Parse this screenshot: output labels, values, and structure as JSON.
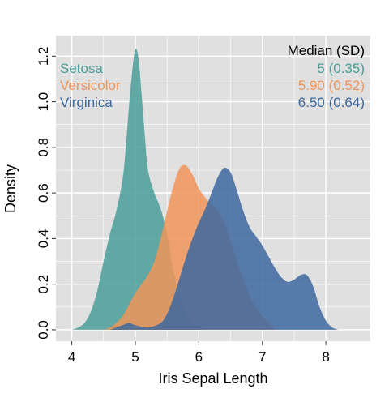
{
  "chart_data": {
    "type": "area",
    "xlabel": "Iris Sepal Length",
    "ylabel": "Density",
    "xlim": [
      3.75,
      8.7
    ],
    "ylim": [
      -0.05,
      1.29
    ],
    "x_ticks": [
      4,
      5,
      6,
      7,
      8
    ],
    "y_ticks": [
      0.0,
      0.2,
      0.4,
      0.6,
      0.8,
      1.0,
      1.2
    ],
    "y_tick_labels": [
      "0.0",
      "0.2",
      "0.4",
      "0.6",
      "0.8",
      "1.0",
      "1.2"
    ],
    "grid": true,
    "legend_placement": "top-left",
    "table_header": "Median (SD)",
    "colors": {
      "setosa": "#4a9e99",
      "versicolor": "#f0955a",
      "virginica": "#3c679f",
      "panel_bg": "#e0e0e0",
      "grid": "#ffffff"
    },
    "series": [
      {
        "name": "Setosa",
        "stat": "5 (0.35)",
        "color": "#4a9e99",
        "points": [
          [
            4.0,
            0.0
          ],
          [
            4.1,
            0.01
          ],
          [
            4.2,
            0.03
          ],
          [
            4.3,
            0.08
          ],
          [
            4.4,
            0.17
          ],
          [
            4.5,
            0.3
          ],
          [
            4.6,
            0.42
          ],
          [
            4.7,
            0.52
          ],
          [
            4.8,
            0.66
          ],
          [
            4.85,
            0.8
          ],
          [
            4.9,
            0.98
          ],
          [
            4.95,
            1.13
          ],
          [
            5.0,
            1.23
          ],
          [
            5.05,
            1.19
          ],
          [
            5.1,
            1.03
          ],
          [
            5.15,
            0.85
          ],
          [
            5.2,
            0.7
          ],
          [
            5.3,
            0.6
          ],
          [
            5.4,
            0.53
          ],
          [
            5.5,
            0.42
          ],
          [
            5.6,
            0.26
          ],
          [
            5.7,
            0.14
          ],
          [
            5.8,
            0.07
          ],
          [
            5.9,
            0.03
          ],
          [
            6.0,
            0.01
          ],
          [
            6.1,
            0.0
          ]
        ]
      },
      {
        "name": "Versicolor",
        "stat": "5.90 (0.52)",
        "color": "#f0955a",
        "points": [
          [
            4.5,
            0.0
          ],
          [
            4.6,
            0.01
          ],
          [
            4.7,
            0.03
          ],
          [
            4.8,
            0.06
          ],
          [
            4.9,
            0.11
          ],
          [
            5.0,
            0.16
          ],
          [
            5.1,
            0.2
          ],
          [
            5.2,
            0.24
          ],
          [
            5.3,
            0.3
          ],
          [
            5.4,
            0.4
          ],
          [
            5.5,
            0.52
          ],
          [
            5.6,
            0.63
          ],
          [
            5.7,
            0.71
          ],
          [
            5.8,
            0.72
          ],
          [
            5.9,
            0.68
          ],
          [
            6.0,
            0.62
          ],
          [
            6.1,
            0.58
          ],
          [
            6.2,
            0.55
          ],
          [
            6.3,
            0.52
          ],
          [
            6.4,
            0.47
          ],
          [
            6.5,
            0.39
          ],
          [
            6.6,
            0.3
          ],
          [
            6.7,
            0.22
          ],
          [
            6.8,
            0.15
          ],
          [
            6.9,
            0.1
          ],
          [
            7.0,
            0.06
          ],
          [
            7.1,
            0.03
          ],
          [
            7.2,
            0.0
          ]
        ]
      },
      {
        "name": "Virginica",
        "stat": "6.50 (0.64)",
        "color": "#3c679f",
        "points": [
          [
            4.6,
            0.0
          ],
          [
            4.7,
            0.01
          ],
          [
            4.8,
            0.02
          ],
          [
            4.9,
            0.03
          ],
          [
            5.0,
            0.02
          ],
          [
            5.2,
            0.01
          ],
          [
            5.4,
            0.03
          ],
          [
            5.5,
            0.07
          ],
          [
            5.6,
            0.14
          ],
          [
            5.7,
            0.23
          ],
          [
            5.8,
            0.32
          ],
          [
            5.9,
            0.4
          ],
          [
            6.0,
            0.47
          ],
          [
            6.1,
            0.53
          ],
          [
            6.2,
            0.6
          ],
          [
            6.3,
            0.67
          ],
          [
            6.4,
            0.71
          ],
          [
            6.5,
            0.69
          ],
          [
            6.6,
            0.61
          ],
          [
            6.7,
            0.52
          ],
          [
            6.8,
            0.45
          ],
          [
            6.9,
            0.41
          ],
          [
            7.0,
            0.37
          ],
          [
            7.1,
            0.32
          ],
          [
            7.2,
            0.27
          ],
          [
            7.3,
            0.23
          ],
          [
            7.4,
            0.21
          ],
          [
            7.5,
            0.22
          ],
          [
            7.6,
            0.24
          ],
          [
            7.7,
            0.24
          ],
          [
            7.8,
            0.19
          ],
          [
            7.9,
            0.1
          ],
          [
            8.0,
            0.04
          ],
          [
            8.1,
            0.01
          ],
          [
            8.2,
            0.0
          ]
        ]
      }
    ]
  }
}
